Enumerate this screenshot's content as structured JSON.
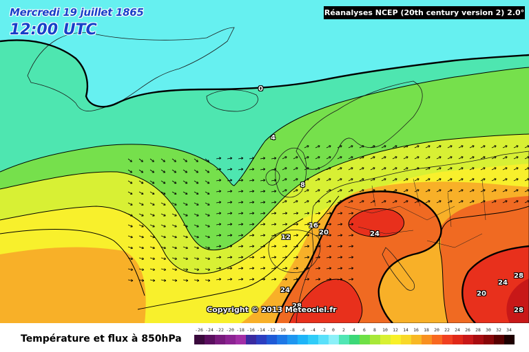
{
  "header": {
    "date": "Mercredi 19 juillet 1865",
    "time": "12:00 UTC",
    "dataset": "Réanalyses NCEP (20th century version 2) 2.0°"
  },
  "copyright": "Copyright © 2013 Meteociel.fr",
  "footer": {
    "title": "Température et flux à 850hPa"
  },
  "isotherm_labels": [
    {
      "text": "0"
    },
    {
      "text": "4"
    },
    {
      "text": "8"
    },
    {
      "text": "12"
    },
    {
      "text": "16"
    },
    {
      "text": "20"
    },
    {
      "text": "24"
    },
    {
      "text": "24"
    },
    {
      "text": "28"
    },
    {
      "text": "24"
    },
    {
      "text": "28"
    },
    {
      "text": "20"
    },
    {
      "text": "28"
    }
  ],
  "legend": {
    "values": [
      "-26",
      "-24",
      "-22",
      "-20",
      "-18",
      "-16",
      "-14",
      "-12",
      "-10",
      "-8",
      "-6",
      "-4",
      "-2",
      "0",
      "2",
      "4",
      "6",
      "8",
      "10",
      "12",
      "14",
      "16",
      "18",
      "20",
      "22",
      "24",
      "26",
      "28",
      "30",
      "32",
      "34"
    ],
    "colors": [
      "#3a0a3c",
      "#5a0f5e",
      "#781a7c",
      "#8c2392",
      "#a22ea6",
      "#3a2aa0",
      "#2c3ec0",
      "#1f5ad6",
      "#1e78e6",
      "#1e96f0",
      "#1eb4f8",
      "#30ccf8",
      "#5ae0fa",
      "#8cf0f8",
      "#50e6b4",
      "#3cd878",
      "#6ee046",
      "#a8e838",
      "#d8f032",
      "#f8f028",
      "#f8d828",
      "#f8b824",
      "#f89020",
      "#f86820",
      "#f04020",
      "#e02818",
      "#c81818",
      "#a80c10",
      "#880608",
      "#580000",
      "#1e0000"
    ]
  },
  "colors": {
    "band_0": "#66f0f0",
    "band_4": "#4ee6b0",
    "band_8": "#76e04c",
    "band_12": "#d8f034",
    "band_16": "#f8f02c",
    "band_20": "#f8b028",
    "band_24": "#f06a22",
    "band_28": "#e8301c",
    "band_32": "#c81818",
    "land_outline": "#1a1a1a",
    "isotherm": "#000000"
  }
}
